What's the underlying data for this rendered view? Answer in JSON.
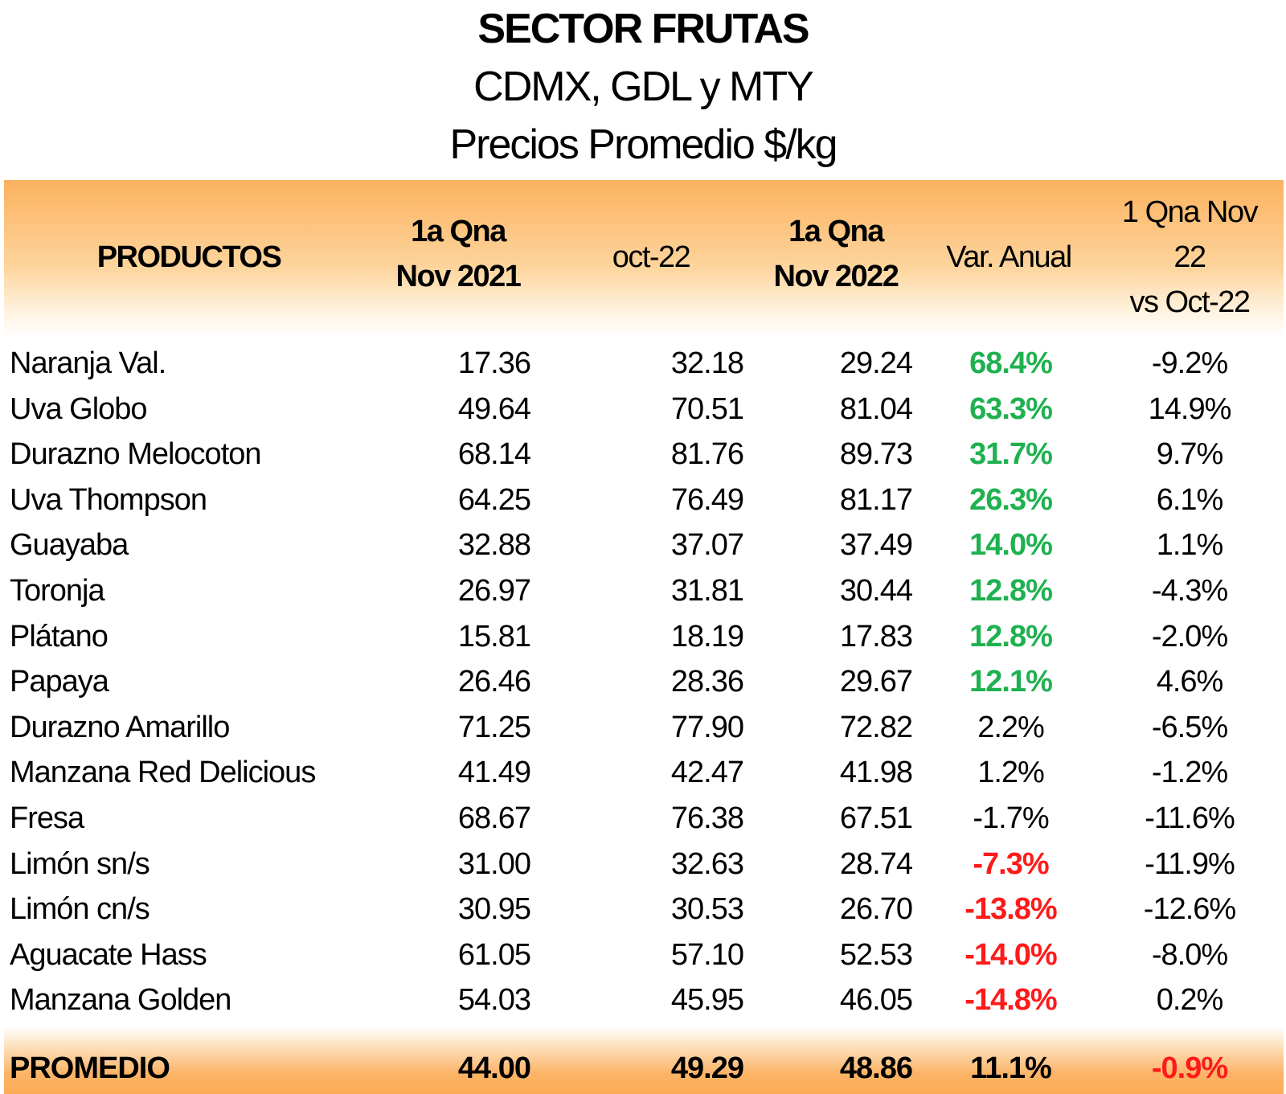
{
  "chart_data": {
    "type": "table",
    "title": "SECTOR FRUTAS",
    "subtitle_lines": [
      "CDMX, GDL y MTY",
      "Precios Promedio $/kg"
    ],
    "headers": {
      "productos": "PRODUCTOS",
      "nov2021": [
        "1a Qna",
        "Nov 2021"
      ],
      "oct22": "oct-22",
      "nov2022": [
        "1a Qna",
        "Nov 2022"
      ],
      "var_anual": "Var. Anual",
      "vs_oct": [
        "1 Qna Nov",
        "22",
        "vs Oct-22"
      ]
    },
    "rows": [
      {
        "producto": "Naranja Val.",
        "nov2021": "17.36",
        "oct22": "32.18",
        "nov2022": "29.24",
        "var_anual": "68.4%",
        "var_status": "positive",
        "vs_oct": "-9.2%"
      },
      {
        "producto": "Uva Globo",
        "nov2021": "49.64",
        "oct22": "70.51",
        "nov2022": "81.04",
        "var_anual": "63.3%",
        "var_status": "positive",
        "vs_oct": "14.9%"
      },
      {
        "producto": "Durazno Melocoton",
        "nov2021": "68.14",
        "oct22": "81.76",
        "nov2022": "89.73",
        "var_anual": "31.7%",
        "var_status": "positive",
        "vs_oct": "9.7%"
      },
      {
        "producto": "Uva Thompson",
        "nov2021": "64.25",
        "oct22": "76.49",
        "nov2022": "81.17",
        "var_anual": "26.3%",
        "var_status": "positive",
        "vs_oct": "6.1%"
      },
      {
        "producto": "Guayaba",
        "nov2021": "32.88",
        "oct22": "37.07",
        "nov2022": "37.49",
        "var_anual": "14.0%",
        "var_status": "positive",
        "vs_oct": "1.1%"
      },
      {
        "producto": "Toronja",
        "nov2021": "26.97",
        "oct22": "31.81",
        "nov2022": "30.44",
        "var_anual": "12.8%",
        "var_status": "positive",
        "vs_oct": "-4.3%"
      },
      {
        "producto": "Plátano",
        "nov2021": "15.81",
        "oct22": "18.19",
        "nov2022": "17.83",
        "var_anual": "12.8%",
        "var_status": "positive",
        "vs_oct": "-2.0%"
      },
      {
        "producto": "Papaya",
        "nov2021": "26.46",
        "oct22": "28.36",
        "nov2022": "29.67",
        "var_anual": "12.1%",
        "var_status": "positive",
        "vs_oct": "4.6%"
      },
      {
        "producto": "Durazno Amarillo",
        "nov2021": "71.25",
        "oct22": "77.90",
        "nov2022": "72.82",
        "var_anual": "2.2%",
        "var_status": "neutral",
        "vs_oct": "-6.5%"
      },
      {
        "producto": "Manzana Red Delicious",
        "nov2021": "41.49",
        "oct22": "42.47",
        "nov2022": "41.98",
        "var_anual": "1.2%",
        "var_status": "neutral",
        "vs_oct": "-1.2%"
      },
      {
        "producto": "Fresa",
        "nov2021": "68.67",
        "oct22": "76.38",
        "nov2022": "67.51",
        "var_anual": "-1.7%",
        "var_status": "neutral",
        "vs_oct": "-11.6%"
      },
      {
        "producto": "Limón sn/s",
        "nov2021": "31.00",
        "oct22": "32.63",
        "nov2022": "28.74",
        "var_anual": "-7.3%",
        "var_status": "negative",
        "vs_oct": "-11.9%"
      },
      {
        "producto": "Limón cn/s",
        "nov2021": "30.95",
        "oct22": "30.53",
        "nov2022": "26.70",
        "var_anual": "-13.8%",
        "var_status": "negative",
        "vs_oct": "-12.6%"
      },
      {
        "producto": "Aguacate Hass",
        "nov2021": "61.05",
        "oct22": "57.10",
        "nov2022": "52.53",
        "var_anual": "-14.0%",
        "var_status": "negative",
        "vs_oct": "-8.0%"
      },
      {
        "producto": "Manzana Golden",
        "nov2021": "54.03",
        "oct22": "45.95",
        "nov2022": "46.05",
        "var_anual": "-14.8%",
        "var_status": "negative",
        "vs_oct": "0.2%"
      }
    ],
    "total": {
      "producto": "PROMEDIO",
      "nov2021": "44.00",
      "oct22": "49.29",
      "nov2022": "48.86",
      "var_anual": "11.1%",
      "vs_oct": "-0.9%"
    },
    "colors": {
      "header_band": "#fbb25f",
      "positive": "#1fb150",
      "negative": "#ff1a1a"
    }
  }
}
